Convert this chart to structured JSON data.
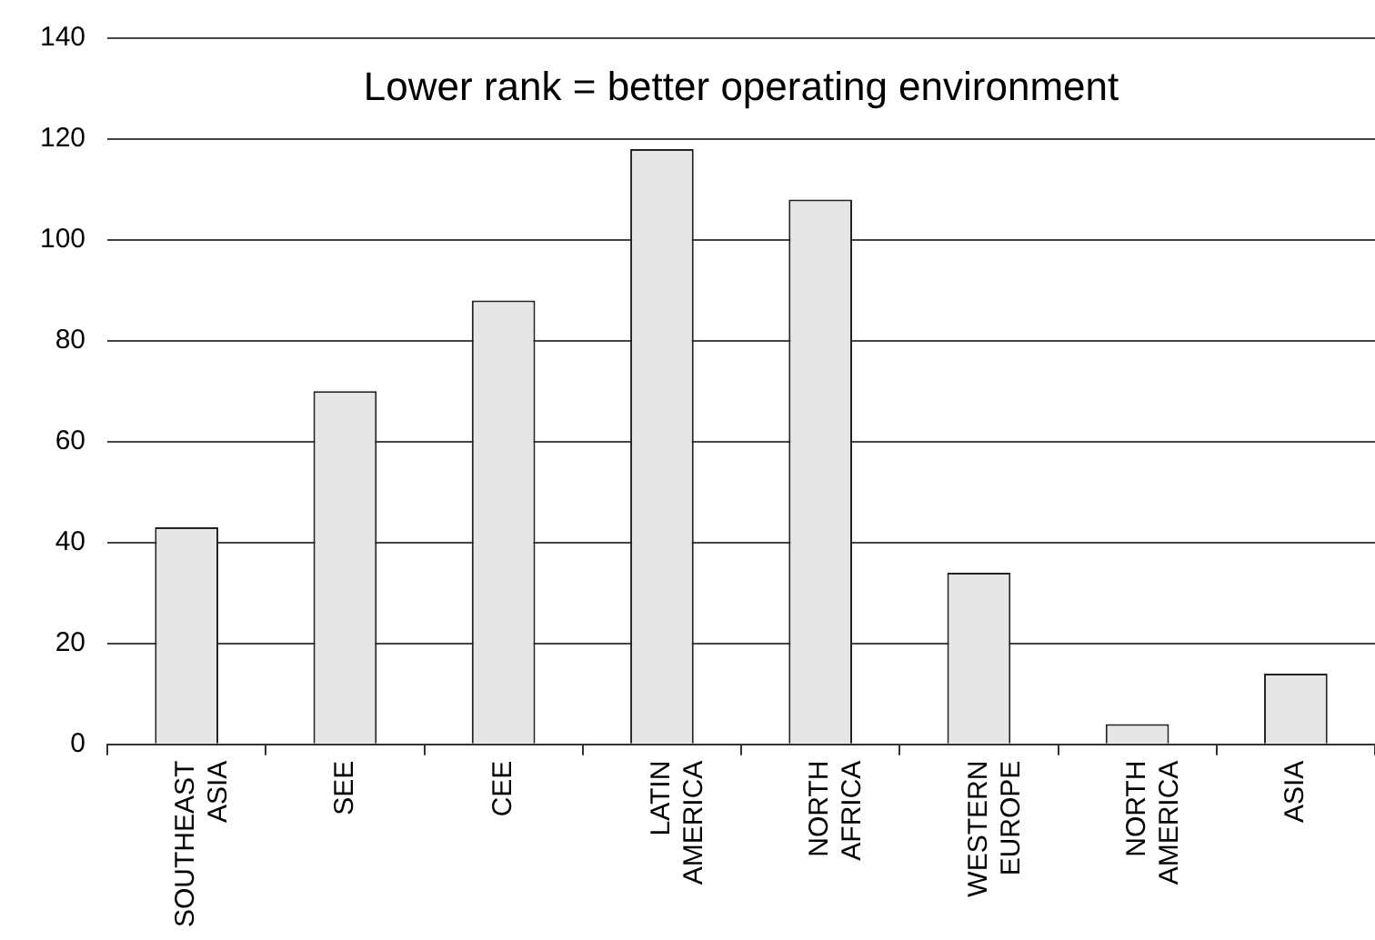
{
  "chart_data": {
    "type": "bar",
    "title": "Lower rank = better operating environment",
    "categories": [
      "SOUTHEAST ASIA",
      "SEE",
      "CEE",
      "LATIN AMERICA",
      "NORTH AFRICA",
      "WESTERN EUROPE",
      "NORTH AMERICA",
      "ASIA"
    ],
    "values": [
      43,
      70,
      88,
      118,
      108,
      34,
      4,
      14
    ],
    "color": "#e6e6e6",
    "ylim": [
      0,
      140
    ],
    "yticks": [
      0,
      20,
      40,
      60,
      80,
      100,
      120,
      140
    ],
    "grid": "y",
    "legend": false
  }
}
